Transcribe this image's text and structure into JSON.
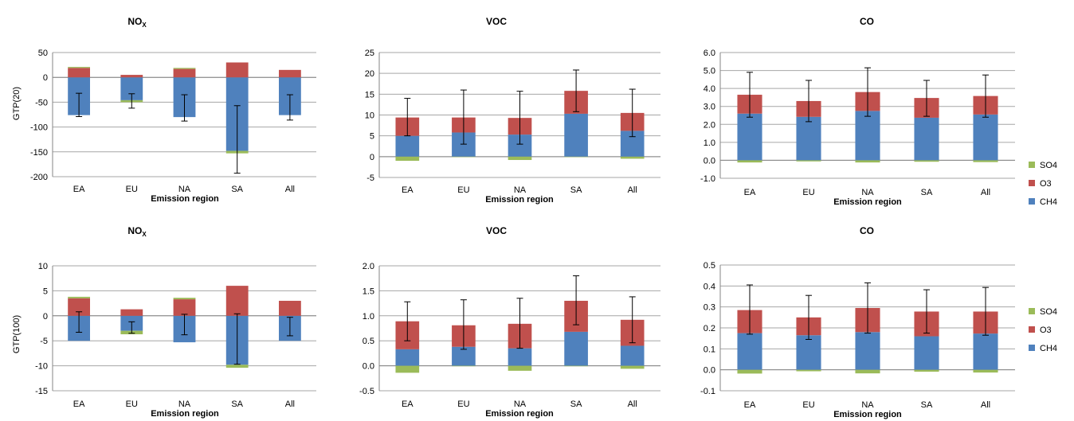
{
  "colors": {
    "SO4": "#9bbb59",
    "O3": "#c0504d",
    "CH4": "#4f81bd",
    "grid": "#a6a6a6",
    "axis": "#868686"
  },
  "legend": [
    "SO4",
    "O3",
    "CH4"
  ],
  "chart_data": [
    {
      "type": "bar",
      "stacked": true,
      "title": "NO",
      "title_sub": "X",
      "ylabel": "GTP(20)",
      "xlabel": "Emission region",
      "categories": [
        "EA",
        "EU",
        "NA",
        "SA",
        "All"
      ],
      "ylim": [
        -200,
        50
      ],
      "yticks": [
        50,
        0,
        -50,
        -100,
        -150,
        -200
      ],
      "tick_decimals": 0,
      "series": [
        {
          "name": "CH4",
          "values": [
            -76,
            -46,
            -80,
            -148,
            -76
          ]
        },
        {
          "name": "O3",
          "values": [
            19,
            5,
            17,
            30,
            15
          ]
        },
        {
          "name": "SO4",
          "values": [
            2,
            -4,
            2,
            -5,
            0
          ]
        }
      ],
      "errors": [
        [
          -79,
          -32
        ],
        [
          -62,
          -33
        ],
        [
          -88,
          -35
        ],
        [
          -193,
          -57
        ],
        [
          -86,
          -35
        ]
      ]
    },
    {
      "type": "bar",
      "stacked": true,
      "title": "VOC",
      "title_sub": "",
      "ylabel": "",
      "xlabel": "Emission region",
      "categories": [
        "EA",
        "EU",
        "NA",
        "SA",
        "All"
      ],
      "ylim": [
        -5,
        25
      ],
      "yticks": [
        25,
        20,
        15,
        10,
        5,
        0,
        -5
      ],
      "tick_decimals": 0,
      "series": [
        {
          "name": "CH4",
          "values": [
            5,
            5.8,
            5.3,
            10.3,
            6.2
          ]
        },
        {
          "name": "O3",
          "values": [
            4.4,
            3.6,
            4.0,
            5.5,
            4.3
          ]
        },
        {
          "name": "SO4",
          "values": [
            -1.0,
            -0.1,
            -0.8,
            -0.1,
            -0.5
          ]
        }
      ],
      "errors": [
        [
          5,
          14
        ],
        [
          3,
          16
        ],
        [
          3,
          15.7
        ],
        [
          10.8,
          20.8
        ],
        [
          4.8,
          16.2
        ]
      ]
    },
    {
      "type": "bar",
      "stacked": true,
      "title": "CO",
      "title_sub": "",
      "ylabel": "",
      "xlabel": "Emission region",
      "categories": [
        "EA",
        "EU",
        "NA",
        "SA",
        "All"
      ],
      "ylim": [
        -1,
        6
      ],
      "yticks": [
        6,
        5,
        4,
        3,
        2,
        1,
        0,
        -1
      ],
      "tick_decimals": 1,
      "series": [
        {
          "name": "CH4",
          "values": [
            2.6,
            2.42,
            2.75,
            2.37,
            2.55
          ]
        },
        {
          "name": "O3",
          "values": [
            1.05,
            0.88,
            1.05,
            1.1,
            1.03
          ]
        },
        {
          "name": "SO4",
          "values": [
            -0.12,
            -0.06,
            -0.12,
            -0.08,
            -0.1
          ]
        }
      ],
      "errors": [
        [
          2.4,
          4.9
        ],
        [
          2.15,
          4.45
        ],
        [
          2.45,
          5.15
        ],
        [
          2.45,
          4.45
        ],
        [
          2.4,
          4.75
        ]
      ]
    },
    {
      "type": "bar",
      "stacked": true,
      "title": "NO",
      "title_sub": "X",
      "ylabel": "GTP(100)",
      "xlabel": "Emission region",
      "categories": [
        "EA",
        "EU",
        "NA",
        "SA",
        "All"
      ],
      "ylim": [
        -15,
        10
      ],
      "yticks": [
        10,
        5,
        0,
        -5,
        -10,
        -15
      ],
      "tick_decimals": 0,
      "series": [
        {
          "name": "CH4",
          "values": [
            -5.0,
            -3.0,
            -5.3,
            -9.8,
            -5.0
          ]
        },
        {
          "name": "O3",
          "values": [
            3.5,
            1.3,
            3.3,
            6.0,
            3.0
          ]
        },
        {
          "name": "SO4",
          "values": [
            0.3,
            -0.7,
            0.3,
            -0.6,
            0
          ]
        }
      ],
      "errors": [
        [
          -3.3,
          0.8
        ],
        [
          -3.5,
          -1.2
        ],
        [
          -3.8,
          0.3
        ],
        [
          -9.7,
          0.4
        ],
        [
          -4.0,
          -0.3
        ]
      ]
    },
    {
      "type": "bar",
      "stacked": true,
      "title": "VOC",
      "title_sub": "",
      "ylabel": "",
      "xlabel": "Emission region",
      "categories": [
        "EA",
        "EU",
        "NA",
        "SA",
        "All"
      ],
      "ylim": [
        -0.5,
        2.0
      ],
      "yticks": [
        2.0,
        1.5,
        1.0,
        0.5,
        0.0,
        -0.5
      ],
      "tick_decimals": 1,
      "series": [
        {
          "name": "CH4",
          "values": [
            0.33,
            0.38,
            0.35,
            0.68,
            0.4
          ]
        },
        {
          "name": "O3",
          "values": [
            0.56,
            0.43,
            0.49,
            0.62,
            0.52
          ]
        },
        {
          "name": "SO4",
          "values": [
            -0.14,
            -0.01,
            -0.1,
            -0.01,
            -0.06
          ]
        }
      ],
      "errors": [
        [
          0.5,
          1.28
        ],
        [
          0.33,
          1.32
        ],
        [
          0.35,
          1.35
        ],
        [
          0.82,
          1.8
        ],
        [
          0.46,
          1.38
        ]
      ]
    },
    {
      "type": "bar",
      "stacked": true,
      "title": "CO",
      "title_sub": "",
      "ylabel": "",
      "xlabel": "Emission region",
      "categories": [
        "EA",
        "EU",
        "NA",
        "SA",
        "All"
      ],
      "ylim": [
        -0.1,
        0.5
      ],
      "yticks": [
        0.5,
        0.4,
        0.3,
        0.2,
        0.1,
        0.0,
        -0.1
      ],
      "tick_decimals": 1,
      "series": [
        {
          "name": "CH4",
          "values": [
            0.175,
            0.165,
            0.18,
            0.16,
            0.173
          ]
        },
        {
          "name": "O3",
          "values": [
            0.11,
            0.085,
            0.115,
            0.118,
            0.105
          ]
        },
        {
          "name": "SO4",
          "values": [
            -0.018,
            -0.007,
            -0.017,
            -0.009,
            -0.013
          ]
        }
      ],
      "errors": [
        [
          0.17,
          0.405
        ],
        [
          0.145,
          0.355
        ],
        [
          0.175,
          0.415
        ],
        [
          0.175,
          0.382
        ],
        [
          0.165,
          0.393
        ]
      ]
    }
  ]
}
